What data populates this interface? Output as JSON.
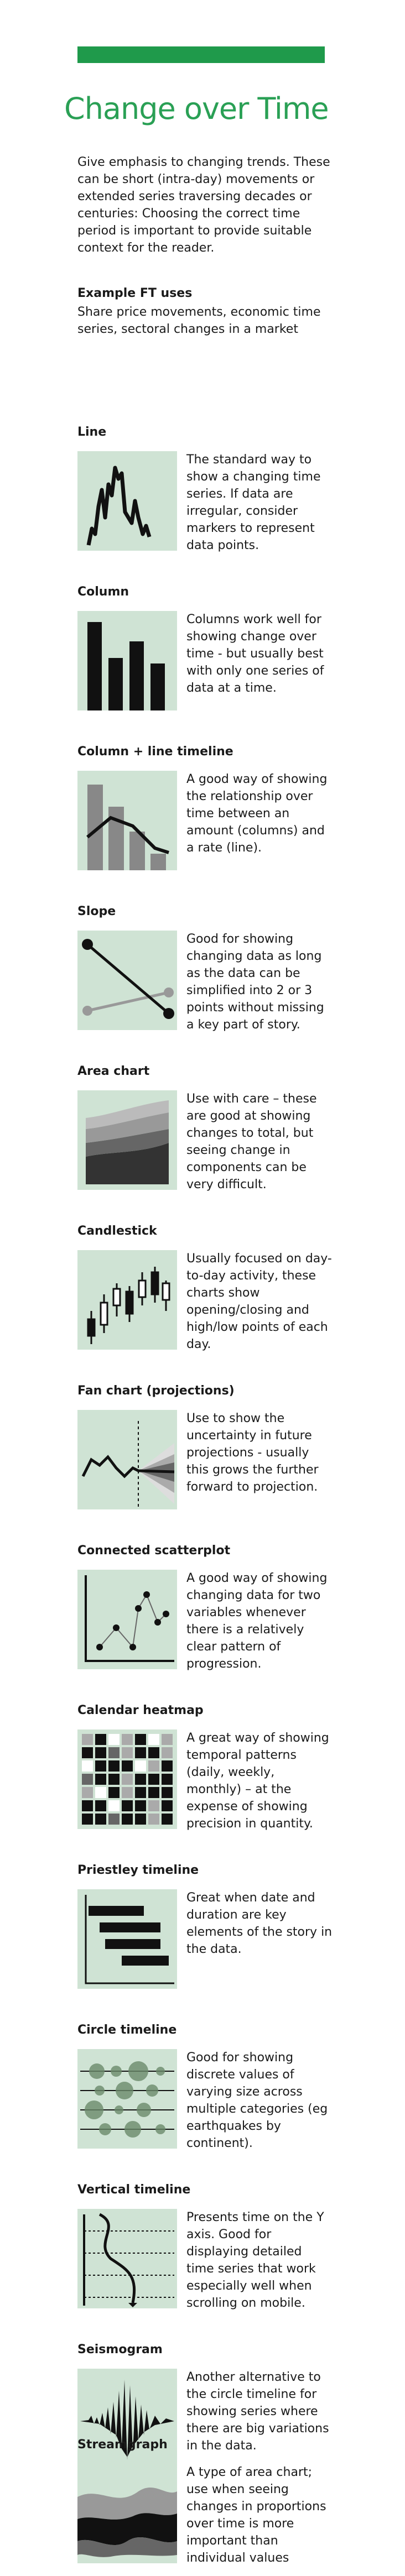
{
  "header": {
    "title": "Change over Time",
    "intro": "Give emphasis to changing trends. These can be short (intra-day) movements or extended series traversing decades or centuries: Choosing the correct time period is important to provide suitable context for the reader.",
    "uses_heading": "Example FT uses",
    "uses_text": "Share price movements, economic time series, sectoral changes in a market"
  },
  "colors": {
    "accent": "#1f9a4b",
    "title": "#2aa055",
    "thumb_bg": "#cfe3d4"
  },
  "sections": [
    {
      "title": "Line",
      "text": "The standard way to show a changing time series. If data are irregular, consider markers to represent data points."
    },
    {
      "title": "Column",
      "text": "Columns work well for showing change over time - but usually best with only one series of data at a time."
    },
    {
      "title": "Column + line timeline",
      "text": "A good way of showing the relationship over time between an amount (columns) and a rate (line)."
    },
    {
      "title": "Slope",
      "text": "Good for showing changing data as long as the data can be simplified into 2 or 3 points without missing a key part of story."
    },
    {
      "title": "Area chart",
      "text": "Use with care – these are good at showing changes to total, but seeing change in components can be very difficult."
    },
    {
      "title": "Candlestick",
      "text": "Usually focused on day-to-day activity, these charts show opening/closing and high/low points of each day."
    },
    {
      "title": "Fan chart (projections)",
      "text": "Use to show the uncertainty in future projections - usually this grows the further forward to projection."
    },
    {
      "title": "Connected scatterplot",
      "text": "A good way of showing changing data for two variables whenever there is a relatively clear pattern of progression."
    },
    {
      "title": "Calendar heatmap",
      "text": "A great way of showing temporal patterns (daily, weekly, monthly) – at the expense of showing precision in quantity."
    },
    {
      "title": "Priestley timeline",
      "text": "Great when date and duration are key elements of the story in the data."
    },
    {
      "title": "Circle timeline",
      "text": "Good for showing discrete values of varying size across multiple categories (eg earthquakes by continent)."
    },
    {
      "title": "Vertical timeline",
      "text": "Presents time on the Y axis. Good for displaying detailed time series that work especially well when scrolling on mobile."
    },
    {
      "title": "Seismogram",
      "text": "Another alternative to the circle timeline for showing series where there are big variations in the data."
    },
    {
      "title": "Streamgraph",
      "text": "A type of area chart; use when seeing changes in proportions over time is more important than individual values"
    }
  ]
}
